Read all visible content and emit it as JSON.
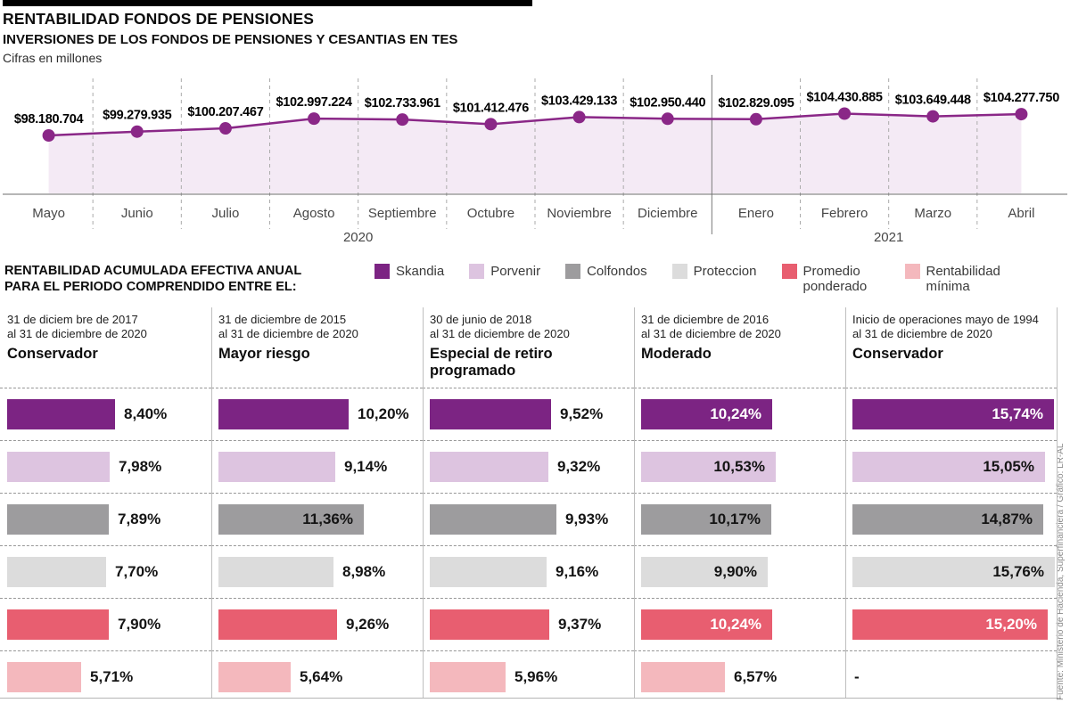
{
  "header": {
    "title": "RENTABILIDAD FONDOS DE PENSIONES",
    "subtitle": "INVERSIONES DE LOS FONDOS DE PENSIONES Y CESANTIAS EN TES",
    "units_note": "Cifras en millones"
  },
  "section2": {
    "title_line1": "RENTABILIDAD ACUMULADA EFECTIVA ANUAL",
    "title_line2": "PARA EL PERIODO COMPRENDIDO ENTRE EL:"
  },
  "source_note": "Fuente: Ministerio de Hacienda, Superfinanciera / Gráfico: LR-AL",
  "chart_data": [
    {
      "type": "line",
      "title": "INVERSIONES DE LOS FONDOS DE PENSIONES Y CESANTIAS EN TES",
      "x": [
        "Mayo",
        "Junio",
        "Julio",
        "Agosto",
        "Septiembre",
        "Octubre",
        "Noviembre",
        "Diciembre",
        "Enero",
        "Febrero",
        "Marzo",
        "Abril"
      ],
      "year_groups": [
        {
          "label": "2020",
          "cols": 8
        },
        {
          "label": "2021",
          "cols": 4
        }
      ],
      "values": [
        98180704,
        99279935,
        100207467,
        102997224,
        102733961,
        101412476,
        103429133,
        102950440,
        102829095,
        104430885,
        103649448,
        104277750
      ],
      "point_labels": [
        "$98.180.704",
        "$99.279.935",
        "$100.207.467",
        "$102.997.224",
        "$102.733.961",
        "$101.412.476",
        "$103.429.133",
        "$102.950.440",
        "$102.829.095",
        "$104.430.885",
        "$103.649.448",
        "$104.277.750"
      ],
      "line_color": "#8a2787",
      "fill_color": "#f4eaf5",
      "grid": "dashed-vertical"
    },
    {
      "type": "bar",
      "orientation": "horizontal",
      "legend": [
        {
          "label": "Skandia",
          "color": "#7c2483"
        },
        {
          "label": "Porvenir",
          "color": "#ddc4e0"
        },
        {
          "label": "Colfondos",
          "color": "#9d9c9e"
        },
        {
          "label": "Proteccion",
          "color": "#dcdcdc"
        },
        {
          "label": "Promedio ponderado",
          "color": "#e85e70"
        },
        {
          "label": "Rentabilidad mínima",
          "color": "#f4b8bd"
        }
      ],
      "groups": [
        {
          "period_line1": "31 de diciem bre de 2017",
          "period_line2": "al 31 de diciembre de 2020",
          "name": "Conservador",
          "values": [
            8.4,
            7.98,
            7.89,
            7.7,
            7.9,
            5.71
          ],
          "labels": [
            "8,40%",
            "7,98%",
            "7,89%",
            "7,70%",
            "7,90%",
            "5,71%"
          ],
          "label_inside": [
            false,
            false,
            false,
            false,
            false,
            false
          ],
          "label_white": [
            false,
            false,
            false,
            false,
            false,
            false
          ]
        },
        {
          "period_line1": "31 de diciembre de 2015",
          "period_line2": "al 31 de diciembre de 2020",
          "name": "Mayor riesgo",
          "values": [
            10.2,
            9.14,
            11.36,
            8.98,
            9.26,
            5.64
          ],
          "labels": [
            "10,20%",
            "9,14%",
            "11,36%",
            "8,98%",
            "9,26%",
            "5,64%"
          ],
          "label_inside": [
            false,
            false,
            true,
            false,
            false,
            false
          ],
          "label_white": [
            false,
            false,
            false,
            false,
            false,
            false
          ]
        },
        {
          "period_line1": "30 de junio de 2018",
          "period_line2": "al 31 de diciembre de 2020",
          "name": "Especial de retiro programado",
          "values": [
            9.52,
            9.32,
            9.93,
            9.16,
            9.37,
            5.96
          ],
          "labels": [
            "9,52%",
            "9,32%",
            "9,93%",
            "9,16%",
            "9,37%",
            "5,96%"
          ],
          "label_inside": [
            false,
            false,
            false,
            false,
            false,
            false
          ],
          "label_white": [
            false,
            false,
            false,
            false,
            false,
            false
          ]
        },
        {
          "period_line1": "31 de diciembre de 2016",
          "period_line2": "al 31 de diciembre de 2020",
          "name": "Moderado",
          "values": [
            10.24,
            10.53,
            10.17,
            9.9,
            10.24,
            6.57
          ],
          "labels": [
            "10,24%",
            "10,53%",
            "10,17%",
            "9,90%",
            "10,24%",
            "6,57%"
          ],
          "label_inside": [
            true,
            true,
            true,
            true,
            true,
            false
          ],
          "label_white": [
            true,
            false,
            false,
            false,
            true,
            false
          ]
        },
        {
          "period_line1": "Inicio de operaciones mayo de 1994",
          "period_line2": "al 31 de diciembre de 2020",
          "name": "Conservador",
          "values": [
            15.74,
            15.05,
            14.87,
            15.76,
            15.2,
            null
          ],
          "labels": [
            "15,74%",
            "15,05%",
            "14,87%",
            "15,76%",
            "15,20%",
            "-"
          ],
          "label_inside": [
            true,
            true,
            true,
            true,
            true,
            false
          ],
          "label_white": [
            true,
            false,
            false,
            false,
            true,
            false
          ]
        }
      ]
    }
  ]
}
